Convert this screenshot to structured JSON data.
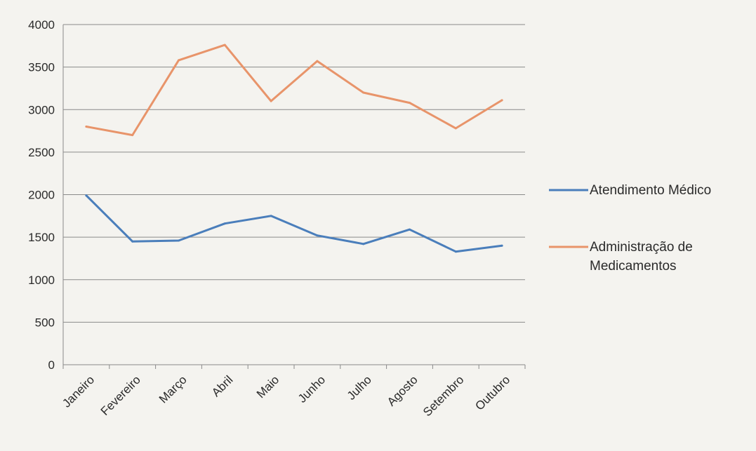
{
  "chart_data": {
    "type": "line",
    "categories": [
      "Janeiro",
      "Fevereiro",
      "Março",
      "Abril",
      "Maio",
      "Junho",
      "Julho",
      "Agosto",
      "Setembro",
      "Outubro"
    ],
    "series": [
      {
        "name": "Atendimento Médico",
        "color": "#4a7ebb",
        "values": [
          1990,
          1450,
          1460,
          1660,
          1750,
          1520,
          1420,
          1590,
          1330,
          1400
        ]
      },
      {
        "name": "Administração de Medicamentos",
        "legend_lines": [
          "Administração de",
          "Medicamentos"
        ],
        "color": "#e8946a",
        "values": [
          2800,
          2700,
          3580,
          3760,
          3100,
          3570,
          3200,
          3080,
          2780,
          3110
        ]
      }
    ],
    "ylim": [
      0,
      4000
    ],
    "yticks": [
      "0",
      "500",
      "1000",
      "1500",
      "2000",
      "2500",
      "3000",
      "3500",
      "4000"
    ],
    "grid": true,
    "legend_position": "right"
  }
}
